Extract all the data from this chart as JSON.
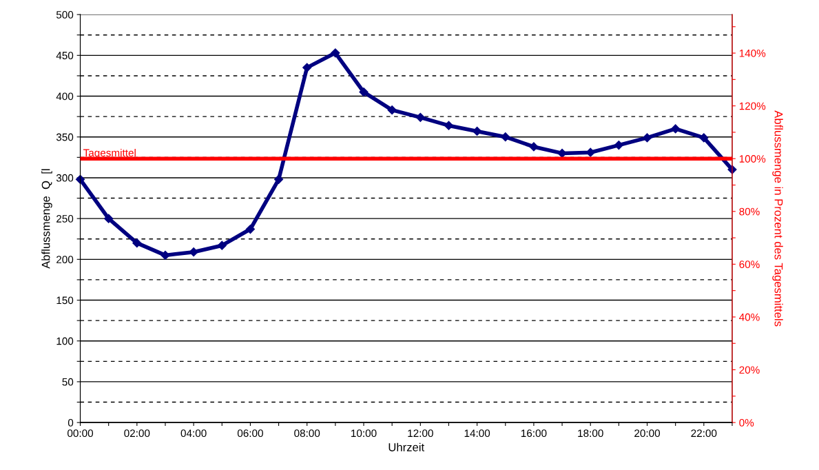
{
  "chart_data": {
    "type": "line",
    "xlabel": "Uhrzeit",
    "ylabel": "Abflussmenge  Q  [l",
    "y2label": "Abflussmenge in Prozent des Tagesmittels",
    "x": [
      0,
      1,
      2,
      3,
      4,
      5,
      6,
      7,
      8,
      9,
      10,
      11,
      12,
      13,
      14,
      15,
      16,
      17,
      18,
      19,
      20,
      21,
      22,
      23
    ],
    "series": [
      {
        "color": "#000080",
        "values": [
          298,
          250,
          220,
          205,
          209,
          217,
          237,
          298,
          435,
          453,
          405,
          383,
          374,
          364,
          357,
          350,
          338,
          330,
          331,
          340,
          349,
          360,
          349,
          310
        ]
      }
    ],
    "xlim": [
      0,
      23
    ],
    "xticks": [
      {
        "value": 0,
        "label": "00:00"
      },
      {
        "value": 1,
        "label": null
      },
      {
        "value": 2,
        "label": "02:00"
      },
      {
        "value": 3,
        "label": null
      },
      {
        "value": 4,
        "label": "04:00"
      },
      {
        "value": 5,
        "label": null
      },
      {
        "value": 6,
        "label": "06:00"
      },
      {
        "value": 7,
        "label": null
      },
      {
        "value": 8,
        "label": "08:00"
      },
      {
        "value": 9,
        "label": null
      },
      {
        "value": 10,
        "label": "10:00"
      },
      {
        "value": 11,
        "label": null
      },
      {
        "value": 12,
        "label": "12:00"
      },
      {
        "value": 13,
        "label": null
      },
      {
        "value": 14,
        "label": "14:00"
      },
      {
        "value": 15,
        "label": null
      },
      {
        "value": 16,
        "label": "16:00"
      },
      {
        "value": 17,
        "label": null
      },
      {
        "value": 18,
        "label": "18:00"
      },
      {
        "value": 19,
        "label": null
      },
      {
        "value": 20,
        "label": "20:00"
      },
      {
        "value": 21,
        "label": null
      },
      {
        "value": 22,
        "label": "22:00"
      },
      {
        "value": 23,
        "label": null
      }
    ],
    "ylim": [
      0,
      500
    ],
    "yticks": [
      0,
      {
        "value": 25,
        "label": null
      },
      50,
      {
        "value": 75,
        "label": null
      },
      100,
      {
        "value": 125,
        "label": null
      },
      150,
      {
        "value": 175,
        "label": null
      },
      200,
      {
        "value": 225,
        "label": null
      },
      250,
      {
        "value": 275,
        "label": null
      },
      300,
      {
        "value": 325,
        "label": null
      },
      350,
      {
        "value": 375,
        "label": null
      },
      400,
      {
        "value": 425,
        "label": null
      },
      450,
      {
        "value": 475,
        "label": null
      },
      500
    ],
    "y2lim": [
      0,
      154.6
    ],
    "y2ticks": [
      {
        "value": 0,
        "label": "0%"
      },
      {
        "value": 10,
        "label": null
      },
      {
        "value": 20,
        "label": "20%"
      },
      {
        "value": 30,
        "label": null
      },
      {
        "value": 40,
        "label": "40%"
      },
      {
        "value": 50,
        "label": null
      },
      {
        "value": 60,
        "label": "60%"
      },
      {
        "value": 70,
        "label": null
      },
      {
        "value": 80,
        "label": "80%"
      },
      {
        "value": 90,
        "label": null
      },
      {
        "value": 100,
        "label": "100%"
      },
      {
        "value": 110,
        "label": null
      },
      {
        "value": 120,
        "label": "120%"
      },
      {
        "value": 130,
        "label": null
      },
      {
        "value": 140,
        "label": "140%"
      },
      {
        "value": 150,
        "label": null
      }
    ],
    "ref_lines": [
      {
        "axis": "y2",
        "value": 100,
        "label": "Tagesmittel",
        "color": "#ff0000"
      }
    ],
    "grid": "y",
    "marker": "diamond",
    "line_style": "solid"
  }
}
